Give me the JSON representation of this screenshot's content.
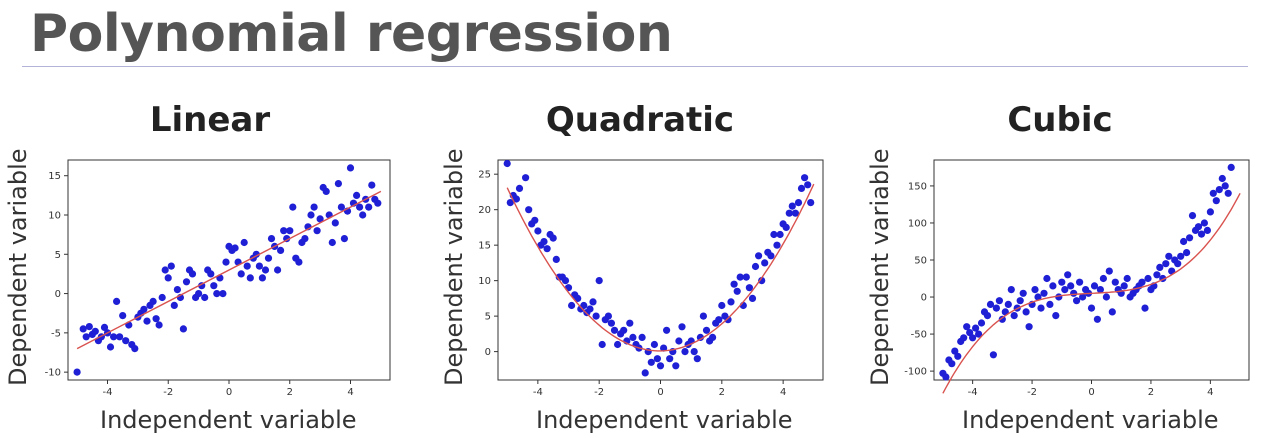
{
  "page": {
    "title": "Polynomial regression"
  },
  "chart_data": [
    {
      "type": "scatter",
      "title": "Linear",
      "xlabel": "Independent variable",
      "ylabel": "Dependent variable",
      "xlim": [
        -5.3,
        5.3
      ],
      "ylim": [
        -11,
        17
      ],
      "xticks": [
        -4,
        -2,
        0,
        2,
        4
      ],
      "yticks": [
        -10,
        -5,
        0,
        5,
        10,
        15
      ],
      "grid": false,
      "colors": {
        "points": "#1f1fd6",
        "fit": "#d9534f"
      },
      "fit_line": {
        "x": [
          -5,
          5
        ],
        "y": [
          -7,
          13
        ]
      },
      "points": [
        [
          -5.0,
          -10.0
        ],
        [
          -4.8,
          -4.5
        ],
        [
          -4.7,
          -5.5
        ],
        [
          -4.6,
          -4.2
        ],
        [
          -4.5,
          -5.2
        ],
        [
          -4.4,
          -4.8
        ],
        [
          -4.3,
          -6.0
        ],
        [
          -4.2,
          -5.5
        ],
        [
          -4.1,
          -4.3
        ],
        [
          -4.0,
          -5.0
        ],
        [
          -3.9,
          -6.8
        ],
        [
          -3.8,
          -5.5
        ],
        [
          -3.7,
          -1.0
        ],
        [
          -3.6,
          -5.5
        ],
        [
          -3.5,
          -2.8
        ],
        [
          -3.4,
          -6.0
        ],
        [
          -3.3,
          -4.0
        ],
        [
          -3.2,
          -6.5
        ],
        [
          -3.1,
          -7.0
        ],
        [
          -3.0,
          -3.0
        ],
        [
          -2.9,
          -2.5
        ],
        [
          -2.8,
          -2.0
        ],
        [
          -2.7,
          -3.5
        ],
        [
          -2.6,
          -1.5
        ],
        [
          -2.5,
          -1.0
        ],
        [
          -2.4,
          -3.2
        ],
        [
          -2.3,
          -4.0
        ],
        [
          -2.2,
          -0.5
        ],
        [
          -2.1,
          3.0
        ],
        [
          -2.0,
          2.0
        ],
        [
          -1.9,
          3.5
        ],
        [
          -1.8,
          -1.5
        ],
        [
          -1.7,
          0.5
        ],
        [
          -1.6,
          -0.5
        ],
        [
          -1.5,
          -4.5
        ],
        [
          -1.4,
          1.5
        ],
        [
          -1.3,
          3.0
        ],
        [
          -1.2,
          2.5
        ],
        [
          -1.1,
          -0.5
        ],
        [
          -1.0,
          0.0
        ],
        [
          -0.9,
          1.0
        ],
        [
          -0.8,
          -0.5
        ],
        [
          -0.7,
          3.0
        ],
        [
          -0.6,
          2.5
        ],
        [
          -0.5,
          1.0
        ],
        [
          -0.4,
          0.0
        ],
        [
          -0.3,
          2.0
        ],
        [
          -0.2,
          0.0
        ],
        [
          -0.1,
          4.0
        ],
        [
          0.0,
          6.0
        ],
        [
          0.1,
          5.5
        ],
        [
          0.2,
          5.8
        ],
        [
          0.3,
          4.0
        ],
        [
          0.4,
          2.5
        ],
        [
          0.5,
          6.5
        ],
        [
          0.6,
          3.5
        ],
        [
          0.7,
          2.0
        ],
        [
          0.8,
          4.5
        ],
        [
          0.9,
          5.0
        ],
        [
          1.0,
          3.5
        ],
        [
          1.1,
          2.0
        ],
        [
          1.2,
          3.0
        ],
        [
          1.3,
          4.5
        ],
        [
          1.4,
          7.0
        ],
        [
          1.5,
          6.0
        ],
        [
          1.6,
          3.0
        ],
        [
          1.7,
          5.5
        ],
        [
          1.8,
          8.0
        ],
        [
          1.9,
          7.0
        ],
        [
          2.0,
          8.0
        ],
        [
          2.1,
          11.0
        ],
        [
          2.2,
          4.5
        ],
        [
          2.3,
          4.0
        ],
        [
          2.4,
          6.5
        ],
        [
          2.5,
          7.0
        ],
        [
          2.6,
          8.5
        ],
        [
          2.7,
          10.0
        ],
        [
          2.8,
          11.0
        ],
        [
          2.9,
          8.0
        ],
        [
          3.0,
          9.5
        ],
        [
          3.1,
          13.5
        ],
        [
          3.2,
          13.0
        ],
        [
          3.3,
          10.0
        ],
        [
          3.4,
          6.5
        ],
        [
          3.5,
          9.0
        ],
        [
          3.6,
          14.0
        ],
        [
          3.7,
          11.0
        ],
        [
          3.8,
          7.0
        ],
        [
          3.9,
          10.5
        ],
        [
          4.0,
          16.0
        ],
        [
          4.1,
          11.5
        ],
        [
          4.2,
          12.5
        ],
        [
          4.3,
          11.0
        ],
        [
          4.4,
          10.0
        ],
        [
          4.5,
          12.0
        ],
        [
          4.6,
          11.0
        ],
        [
          4.7,
          13.8
        ],
        [
          4.8,
          12.0
        ],
        [
          4.9,
          11.5
        ]
      ]
    },
    {
      "type": "scatter",
      "title": "Quadratic",
      "xlabel": "Independent variable",
      "ylabel": "Dependent variable",
      "xlim": [
        -5.3,
        5.3
      ],
      "ylim": [
        -4,
        27
      ],
      "xticks": [
        -4,
        -2,
        0,
        2,
        4
      ],
      "yticks": [
        0,
        5,
        10,
        15,
        20,
        25
      ],
      "grid": false,
      "colors": {
        "points": "#1f1fd6",
        "fit": "#d9534f"
      },
      "fit_curve": {
        "form": "quadratic",
        "coef": [
          0.93,
          0.05,
          0.1
        ],
        "x_range": [
          -5,
          5
        ]
      },
      "points": [
        [
          -5.0,
          26.5
        ],
        [
          -4.9,
          21.0
        ],
        [
          -4.8,
          22.0
        ],
        [
          -4.7,
          21.5
        ],
        [
          -4.6,
          23.0
        ],
        [
          -4.4,
          24.5
        ],
        [
          -4.3,
          20.0
        ],
        [
          -4.2,
          18.0
        ],
        [
          -4.1,
          18.5
        ],
        [
          -4.0,
          17.0
        ],
        [
          -3.9,
          15.0
        ],
        [
          -3.8,
          15.5
        ],
        [
          -3.7,
          14.5
        ],
        [
          -3.6,
          16.5
        ],
        [
          -3.5,
          16.0
        ],
        [
          -3.4,
          13.0
        ],
        [
          -3.3,
          10.5
        ],
        [
          -3.2,
          10.5
        ],
        [
          -3.1,
          10.0
        ],
        [
          -3.0,
          9.0
        ],
        [
          -2.9,
          6.5
        ],
        [
          -2.8,
          8.0
        ],
        [
          -2.7,
          7.5
        ],
        [
          -2.6,
          6.0
        ],
        [
          -2.5,
          6.5
        ],
        [
          -2.4,
          5.5
        ],
        [
          -2.3,
          6.0
        ],
        [
          -2.2,
          7.0
        ],
        [
          -2.1,
          5.0
        ],
        [
          -2.0,
          10.0
        ],
        [
          -1.9,
          1.0
        ],
        [
          -1.8,
          4.5
        ],
        [
          -1.7,
          5.0
        ],
        [
          -1.6,
          4.0
        ],
        [
          -1.5,
          3.0
        ],
        [
          -1.4,
          1.0
        ],
        [
          -1.3,
          2.5
        ],
        [
          -1.2,
          3.0
        ],
        [
          -1.1,
          1.5
        ],
        [
          -1.0,
          4.0
        ],
        [
          -0.9,
          2.0
        ],
        [
          -0.8,
          1.0
        ],
        [
          -0.7,
          0.5
        ],
        [
          -0.6,
          2.0
        ],
        [
          -0.5,
          -3.0
        ],
        [
          -0.4,
          0.0
        ],
        [
          -0.3,
          -1.5
        ],
        [
          -0.2,
          1.0
        ],
        [
          -0.1,
          -1.0
        ],
        [
          0.0,
          -2.0
        ],
        [
          0.1,
          0.5
        ],
        [
          0.2,
          3.0
        ],
        [
          0.3,
          -1.0
        ],
        [
          0.4,
          0.0
        ],
        [
          0.5,
          -2.0
        ],
        [
          0.6,
          1.5
        ],
        [
          0.7,
          3.5
        ],
        [
          0.8,
          0.0
        ],
        [
          0.9,
          1.0
        ],
        [
          1.0,
          1.5
        ],
        [
          1.1,
          0.0
        ],
        [
          1.2,
          -1.0
        ],
        [
          1.3,
          2.0
        ],
        [
          1.4,
          5.0
        ],
        [
          1.5,
          3.0
        ],
        [
          1.6,
          1.5
        ],
        [
          1.7,
          2.0
        ],
        [
          1.8,
          4.0
        ],
        [
          1.9,
          4.5
        ],
        [
          2.0,
          6.5
        ],
        [
          2.1,
          5.0
        ],
        [
          2.2,
          4.5
        ],
        [
          2.3,
          7.0
        ],
        [
          2.4,
          9.5
        ],
        [
          2.5,
          8.5
        ],
        [
          2.6,
          10.5
        ],
        [
          2.7,
          6.5
        ],
        [
          2.8,
          10.5
        ],
        [
          2.9,
          9.0
        ],
        [
          3.0,
          7.5
        ],
        [
          3.1,
          12.0
        ],
        [
          3.2,
          13.5
        ],
        [
          3.3,
          10.0
        ],
        [
          3.4,
          12.5
        ],
        [
          3.5,
          14.0
        ],
        [
          3.6,
          13.5
        ],
        [
          3.7,
          16.5
        ],
        [
          3.8,
          15.0
        ],
        [
          3.9,
          16.5
        ],
        [
          4.0,
          18.0
        ],
        [
          4.1,
          17.5
        ],
        [
          4.2,
          19.5
        ],
        [
          4.3,
          20.5
        ],
        [
          4.4,
          19.5
        ],
        [
          4.5,
          21.0
        ],
        [
          4.6,
          23.0
        ],
        [
          4.7,
          24.5
        ],
        [
          4.8,
          23.5
        ],
        [
          4.9,
          21.0
        ]
      ]
    },
    {
      "type": "scatter",
      "title": "Cubic",
      "xlabel": "Independent variable",
      "ylabel": "Dependent variable",
      "xlim": [
        -5.3,
        5.3
      ],
      "ylim": [
        -112,
        185
      ],
      "xticks": [
        -4,
        -2,
        0,
        2,
        4
      ],
      "yticks": [
        -100,
        -50,
        0,
        50,
        100,
        150
      ],
      "grid": false,
      "colors": {
        "points": "#1f1fd6",
        "fit": "#d9534f"
      },
      "fit_curve": {
        "form": "cubic",
        "coef": [
          1.0,
          0.0,
          2.0,
          5.0
        ],
        "x_range": [
          -5,
          5
        ]
      },
      "points": [
        [
          -5.0,
          -103.0
        ],
        [
          -4.9,
          -108.0
        ],
        [
          -4.8,
          -85.0
        ],
        [
          -4.7,
          -90.0
        ],
        [
          -4.6,
          -73.0
        ],
        [
          -4.5,
          -80.0
        ],
        [
          -4.4,
          -60.0
        ],
        [
          -4.3,
          -55.0
        ],
        [
          -4.2,
          -40.0
        ],
        [
          -4.1,
          -48.0
        ],
        [
          -4.0,
          -55.0
        ],
        [
          -3.9,
          -42.0
        ],
        [
          -3.8,
          -50.0
        ],
        [
          -3.7,
          -35.0
        ],
        [
          -3.6,
          -20.0
        ],
        [
          -3.5,
          -25.0
        ],
        [
          -3.4,
          -10.0
        ],
        [
          -3.3,
          -78.0
        ],
        [
          -3.2,
          -15.0
        ],
        [
          -3.1,
          -5.0
        ],
        [
          -3.0,
          -30.0
        ],
        [
          -2.9,
          -20.0
        ],
        [
          -2.8,
          -10.0
        ],
        [
          -2.7,
          10.0
        ],
        [
          -2.6,
          -25.0
        ],
        [
          -2.5,
          -15.0
        ],
        [
          -2.4,
          -5.0
        ],
        [
          -2.3,
          5.0
        ],
        [
          -2.2,
          -20.0
        ],
        [
          -2.1,
          -40.0
        ],
        [
          -2.0,
          -10.0
        ],
        [
          -1.9,
          10.0
        ],
        [
          -1.8,
          0.0
        ],
        [
          -1.7,
          -15.0
        ],
        [
          -1.6,
          5.0
        ],
        [
          -1.5,
          25.0
        ],
        [
          -1.4,
          -10.0
        ],
        [
          -1.3,
          15.0
        ],
        [
          -1.2,
          -25.0
        ],
        [
          -1.1,
          0.0
        ],
        [
          -1.0,
          20.0
        ],
        [
          -0.9,
          10.0
        ],
        [
          -0.8,
          30.0
        ],
        [
          -0.7,
          15.0
        ],
        [
          -0.6,
          5.0
        ],
        [
          -0.5,
          -5.0
        ],
        [
          -0.4,
          20.0
        ],
        [
          -0.3,
          0.0
        ],
        [
          -0.2,
          10.0
        ],
        [
          -0.1,
          5.0
        ],
        [
          0.0,
          -15.0
        ],
        [
          0.1,
          15.0
        ],
        [
          0.2,
          -30.0
        ],
        [
          0.3,
          10.0
        ],
        [
          0.4,
          25.0
        ],
        [
          0.5,
          0.0
        ],
        [
          0.6,
          35.0
        ],
        [
          0.7,
          -20.0
        ],
        [
          0.8,
          20.0
        ],
        [
          0.9,
          10.0
        ],
        [
          1.0,
          5.0
        ],
        [
          1.1,
          15.0
        ],
        [
          1.2,
          25.0
        ],
        [
          1.3,
          0.0
        ],
        [
          1.4,
          5.0
        ],
        [
          1.5,
          10.0
        ],
        [
          1.6,
          15.0
        ],
        [
          1.7,
          20.0
        ],
        [
          1.8,
          -15.0
        ],
        [
          1.9,
          25.0
        ],
        [
          2.0,
          10.0
        ],
        [
          2.1,
          15.0
        ],
        [
          2.2,
          30.0
        ],
        [
          2.3,
          40.0
        ],
        [
          2.4,
          25.0
        ],
        [
          2.5,
          45.0
        ],
        [
          2.6,
          55.0
        ],
        [
          2.7,
          35.0
        ],
        [
          2.8,
          50.0
        ],
        [
          2.9,
          45.0
        ],
        [
          3.0,
          55.0
        ],
        [
          3.1,
          75.0
        ],
        [
          3.2,
          60.0
        ],
        [
          3.3,
          80.0
        ],
        [
          3.4,
          110.0
        ],
        [
          3.5,
          90.0
        ],
        [
          3.6,
          95.0
        ],
        [
          3.7,
          85.0
        ],
        [
          3.8,
          100.0
        ],
        [
          3.9,
          90.0
        ],
        [
          4.0,
          115.0
        ],
        [
          4.1,
          140.0
        ],
        [
          4.2,
          130.0
        ],
        [
          4.3,
          145.0
        ],
        [
          4.4,
          160.0
        ],
        [
          4.5,
          150.0
        ],
        [
          4.6,
          140.0
        ],
        [
          4.7,
          175.0
        ]
      ]
    }
  ]
}
